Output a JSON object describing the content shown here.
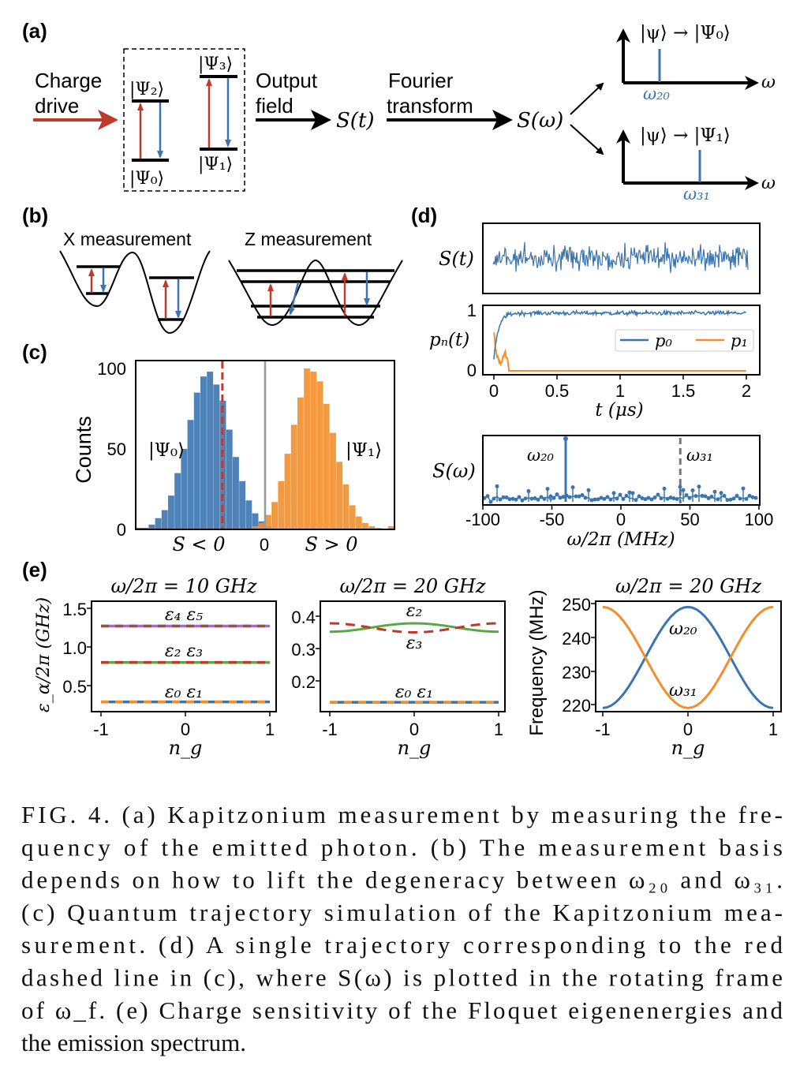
{
  "colors": {
    "blue": "#3a75b0",
    "orange": "#f28e2b",
    "red": "#c0392b",
    "green": "#59a845",
    "purple": "#9b6fc9",
    "brown": "#8c564b",
    "gray": "#999999"
  },
  "panel_a": {
    "label": "(a)",
    "charge": "Charge",
    "drive": "drive",
    "psi2": "|Ψ₂⟩",
    "psi0": "|Ψ₀⟩",
    "psi3": "|Ψ₃⟩",
    "psi1": "|Ψ₁⟩",
    "output": "Output",
    "field": "field",
    "s_t": "S(t)",
    "fourier": "Fourier",
    "transform": "transform",
    "s_w": "S(ω)",
    "top_title": "|ψ⟩ → |Ψ₀⟩",
    "bottom_title": "|ψ⟩ → |Ψ₁⟩",
    "omega": "ω",
    "w20": "ω₂₀",
    "w31": "ω₃₁"
  },
  "panel_b": {
    "label": "(b)",
    "x_title": "X measurement",
    "z_title": "Z measurement"
  },
  "panel_c": {
    "label": "(c)",
    "psi0": "|Ψ₀⟩",
    "psi1": "|Ψ₁⟩"
  },
  "panel_d": {
    "label": "(d)",
    "s_t": "S(t)",
    "pn": "pₙ(t)",
    "s_w": "S(ω)",
    "w20": "ω₂₀",
    "w31": "ω₃₁",
    "legend": [
      "p₀",
      "p₁"
    ]
  },
  "panel_e": {
    "label": "(e)"
  },
  "chart_data": [
    {
      "id": "c",
      "type": "bar",
      "title": "",
      "xlabel": "",
      "ylabel": "Counts",
      "xticks": [
        "S < 0",
        "0",
        "S > 0"
      ],
      "yticks": [
        "100",
        "50",
        "0"
      ],
      "ylim": [
        0,
        100
      ],
      "xlim": [
        -1,
        1
      ],
      "bin_width": 0.05,
      "series": [
        {
          "name": "|Ψ₀⟩",
          "color": "#3a75b0",
          "start": -0.975,
          "values": [
            1,
            1,
            3,
            7,
            12,
            21,
            35,
            50,
            68,
            85,
            95,
            98,
            90,
            80,
            62,
            45,
            30,
            18,
            10,
            5,
            2
          ]
        },
        {
          "name": "|Ψ₁⟩",
          "color": "#f28e2b",
          "start": -0.075,
          "values": [
            2,
            4,
            9,
            17,
            30,
            47,
            65,
            82,
            100,
            98,
            92,
            78,
            60,
            42,
            28,
            15,
            8,
            4,
            2,
            1,
            0,
            2
          ]
        }
      ],
      "threshold_line": -0.33,
      "zero_line": 0
    },
    {
      "id": "d1",
      "type": "line",
      "ylabel": "S(t)",
      "description_series": "noisy blue signal"
    },
    {
      "id": "d2",
      "type": "line",
      "xlabel": "t (μs)",
      "ylabel": "pₙ(t)",
      "xticks": [
        "0",
        "0.5",
        "1",
        "1.5",
        "2"
      ],
      "yticks": [
        "1",
        "0"
      ],
      "xlim": [
        0,
        2
      ],
      "ylim": [
        0,
        1
      ],
      "series": [
        {
          "name": "p₀",
          "color": "#3a75b0",
          "final": 0.95
        },
        {
          "name": "p₁",
          "color": "#f28e2b",
          "final": 0.0
        }
      ],
      "legend": "right"
    },
    {
      "id": "d3",
      "type": "line",
      "xlabel": "ω/2π (MHz)",
      "ylabel": "S(ω)",
      "xticks": [
        "-100",
        "-50",
        "0",
        "50",
        "100"
      ],
      "xlim": [
        -100,
        100
      ],
      "peaks": [
        {
          "label": "ω₂₀",
          "x": -40
        }
      ],
      "dashed_marker": {
        "label": "ω₃₁",
        "x": 43
      }
    },
    {
      "id": "e1",
      "type": "line",
      "title": "ω/2π = 10 GHz",
      "xlabel": "n_g",
      "ylabel": "ε_α/2π (GHz)",
      "xticks": [
        "-1",
        "0",
        "1"
      ],
      "yticks": [
        "1.5",
        "1.0",
        "0.5"
      ],
      "xlim": [
        -1,
        1
      ],
      "ylim": [
        0.2,
        1.6
      ],
      "series": [
        {
          "name": "ε₄ ε₅",
          "colors": [
            "#9b6fc9",
            "#8c564b"
          ],
          "value": 1.27
        },
        {
          "name": "ε₂ ε₃",
          "colors": [
            "#59a845",
            "#c0392b"
          ],
          "value": 0.8
        },
        {
          "name": "ε₀ ε₁",
          "colors": [
            "#3a75b0",
            "#f28e2b"
          ],
          "value": 0.29
        }
      ]
    },
    {
      "id": "e2",
      "type": "line",
      "title": "ω/2π = 20 GHz",
      "xlabel": "n_g",
      "xticks": [
        "-1",
        "0",
        "1"
      ],
      "yticks": [
        "0.4",
        "0.3",
        "0.2"
      ],
      "xlim": [
        -1,
        1
      ],
      "ylim": [
        0.11,
        0.45
      ],
      "series": [
        {
          "name": "ε₂",
          "color": "#59a845",
          "edge": 0.352,
          "center": 0.378
        },
        {
          "name": "ε₃",
          "color": "#c0392b",
          "dashed": true,
          "edge": 0.378,
          "center": 0.35
        },
        {
          "name": "ε₀ ε₁",
          "colors": [
            "#3a75b0",
            "#f28e2b"
          ],
          "edge": 0.134,
          "center": 0.134
        }
      ]
    },
    {
      "id": "e3",
      "type": "line",
      "title": "ω/2π = 20 GHz",
      "xlabel": "n_g",
      "ylabel": "Frequency (MHz)",
      "xticks": [
        "-1",
        "0",
        "1"
      ],
      "yticks": [
        "250",
        "240",
        "230",
        "220"
      ],
      "xlim": [
        -1,
        1
      ],
      "ylim": [
        218,
        251
      ],
      "series": [
        {
          "name": "ω₂₀",
          "color": "#3a75b0",
          "edge": 219,
          "center": 249
        },
        {
          "name": "ω₃₁",
          "color": "#f28e2b",
          "edge": 249,
          "center": 219
        }
      ]
    }
  ],
  "caption": {
    "lines": [
      "FIG. 4.  (a) Kapitzonium measurement by measuring the fre-",
      "quency of the emitted photon.  (b) The measurement basis",
      "depends on how to lift the degeneracy between ω₂₀ and ω₃₁.",
      "(c) Quantum trajectory simulation of the Kapitzonium mea-",
      "surement.  (d) A single trajectory corresponding to the red",
      "dashed line in (c), where S(ω) is plotted in the rotating frame",
      "of ω_f.  (e) Charge sensitivity of the Floquet eigenenergies and",
      "the emission spectrum."
    ]
  }
}
